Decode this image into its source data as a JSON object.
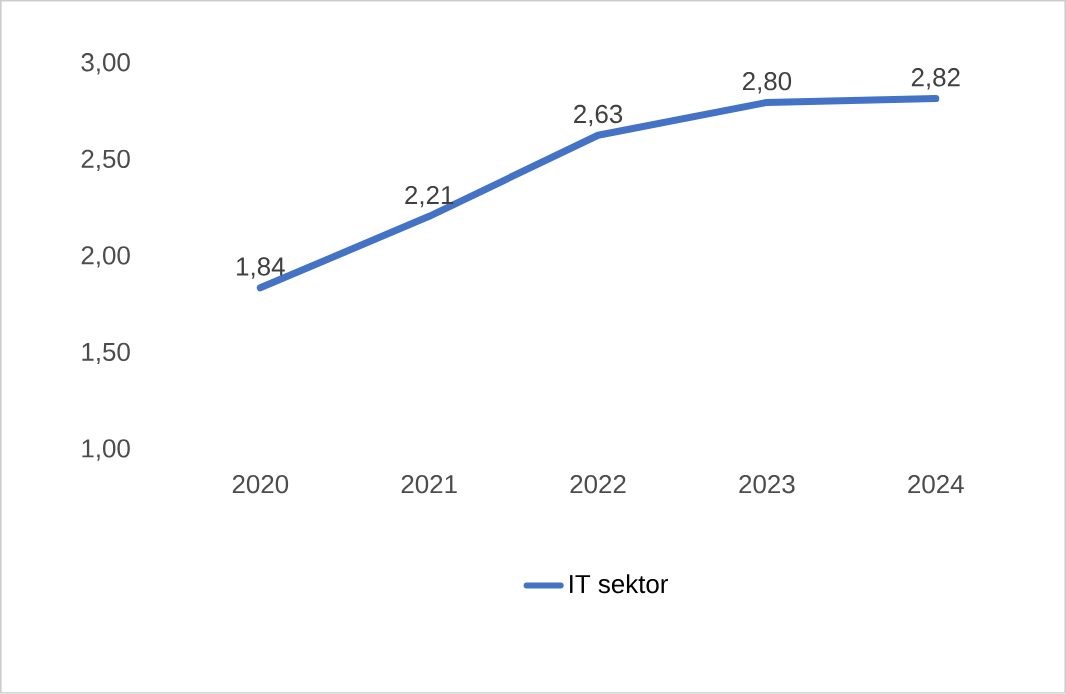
{
  "chart_data": {
    "type": "line",
    "categories": [
      "2020",
      "2021",
      "2022",
      "2023",
      "2024"
    ],
    "series": [
      {
        "name": "IT sektor",
        "color": "#4472c4",
        "values": [
          1.84,
          2.21,
          2.63,
          2.8,
          2.82
        ]
      }
    ],
    "value_labels": [
      "1,84",
      "2,21",
      "2,63",
      "2,80",
      "2,82"
    ],
    "ylim": [
      1,
      3
    ],
    "yticks": [
      {
        "value": 1,
        "label": "1,00"
      },
      {
        "value": 1.5,
        "label": "1,50"
      },
      {
        "value": 2,
        "label": "2,00"
      },
      {
        "value": 2.5,
        "label": "2,50"
      },
      {
        "value": 3,
        "label": "3,00"
      }
    ],
    "grid": false,
    "legend": "bottom",
    "marker": "none",
    "line_style": "solid"
  }
}
